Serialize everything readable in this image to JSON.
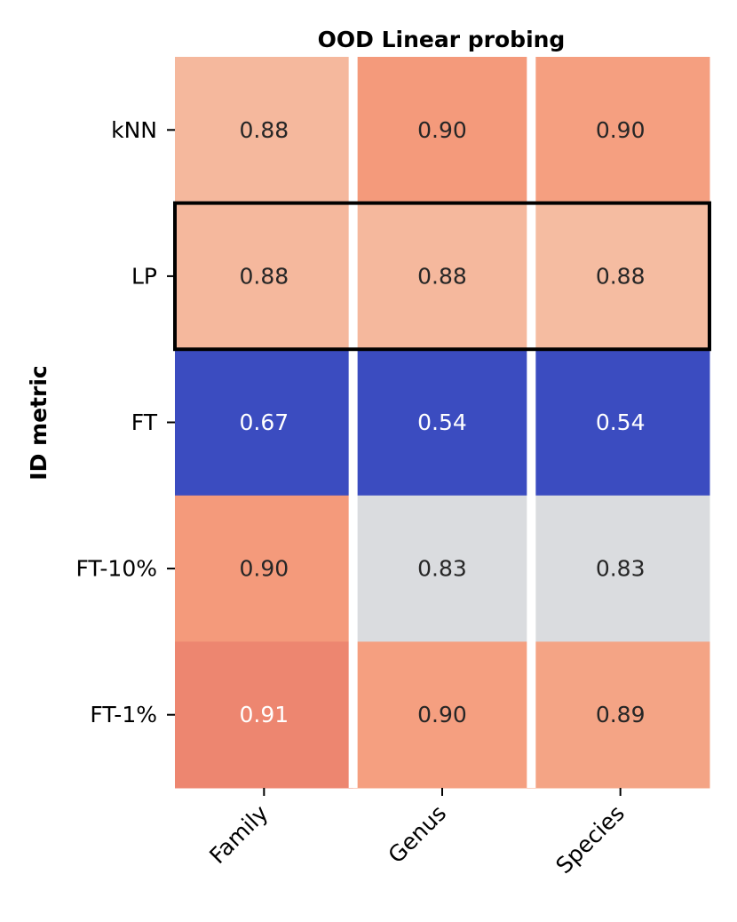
{
  "chart_data": {
    "type": "heatmap",
    "title": "OOD Linear probing",
    "xlabel": "",
    "ylabel": "ID metric",
    "columns": [
      "Family",
      "Genus",
      "Species"
    ],
    "rows": [
      "kNN",
      "LP",
      "FT",
      "FT-10%",
      "FT-1%"
    ],
    "values": [
      [
        0.88,
        0.9,
        0.9
      ],
      [
        0.88,
        0.88,
        0.88
      ],
      [
        0.67,
        0.54,
        0.54
      ],
      [
        0.9,
        0.83,
        0.83
      ],
      [
        0.91,
        0.9,
        0.89
      ]
    ],
    "labels": [
      [
        "0.88",
        "0.90",
        "0.90"
      ],
      [
        "0.88",
        "0.88",
        "0.88"
      ],
      [
        "0.67",
        "0.54",
        "0.54"
      ],
      [
        "0.90",
        "0.83",
        "0.83"
      ],
      [
        "0.91",
        "0.90",
        "0.89"
      ]
    ],
    "cell_colors": [
      [
        "#f5b89d",
        "#f49a7b",
        "#f59f80"
      ],
      [
        "#f5b89d",
        "#f5b89d",
        "#f5bca1"
      ],
      [
        "#3b4cc0",
        "#3b4cc0",
        "#3b4cc0"
      ],
      [
        "#f49a7b",
        "#dadcdf",
        "#dadcdf"
      ],
      [
        "#ed8670",
        "#f59f80",
        "#f4a485"
      ]
    ],
    "label_colors": [
      [
        "#262626",
        "#262626",
        "#262626"
      ],
      [
        "#262626",
        "#262626",
        "#262626"
      ],
      [
        "#ffffff",
        "#ffffff",
        "#ffffff"
      ],
      [
        "#262626",
        "#262626",
        "#262626"
      ],
      [
        "#ffffff",
        "#262626",
        "#262626"
      ]
    ],
    "highlighted_row": "LP",
    "colorbar": false
  }
}
